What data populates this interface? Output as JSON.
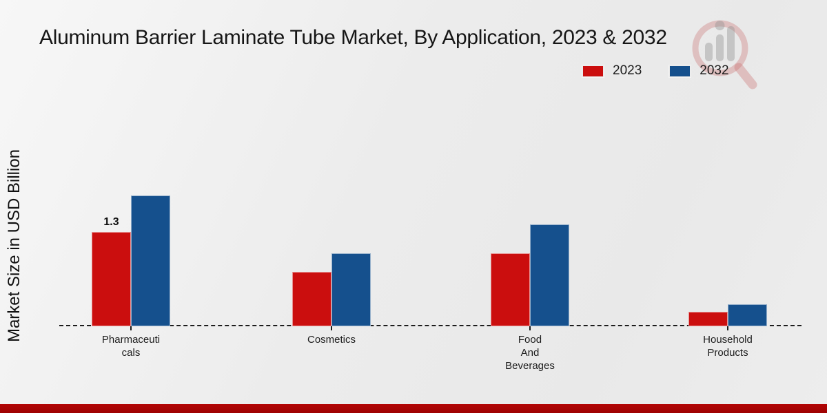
{
  "title": "Aluminum Barrier Laminate Tube Market, By Application, 2023 & 2032",
  "y_axis_label": "Market Size in USD Billion",
  "legend": [
    {
      "label": "2023",
      "color": "#cb0e0e"
    },
    {
      "label": "2032",
      "color": "#15508d"
    }
  ],
  "watermark_icon": "magnifier-bar-chart-logo",
  "colors": {
    "series_2023": "#cb0e0e",
    "series_2032": "#15508d",
    "bottom_band": "#b30505",
    "axis": "#1c1c1c"
  },
  "chart_data": {
    "type": "bar",
    "title": "Aluminum Barrier Laminate Tube Market, By Application, 2023 & 2032",
    "categories": [
      "Pharmaceuticals",
      "Cosmetics",
      "Food And Beverages",
      "Household Products"
    ],
    "category_label_lines": [
      [
        "Pharmaceuti",
        "cals"
      ],
      [
        "Cosmetics"
      ],
      [
        "Food",
        "And",
        "Beverages"
      ],
      [
        "Household",
        "Products"
      ]
    ],
    "series": [
      {
        "name": "2023",
        "color": "#cb0e0e",
        "values": [
          1.3,
          0.75,
          1.0,
          0.2
        ]
      },
      {
        "name": "2032",
        "color": "#15508d",
        "values": [
          1.8,
          1.0,
          1.4,
          0.3
        ]
      }
    ],
    "xlabel": "",
    "ylabel": "Market Size in USD Billion",
    "ylim": [
      0,
      2.0
    ],
    "grid": false,
    "axis_style": "dashed-baseline-only",
    "legend_position": "top-right",
    "value_labels": [
      {
        "series": "2023",
        "category": "Pharmaceuticals",
        "text": "1.3"
      }
    ]
  }
}
